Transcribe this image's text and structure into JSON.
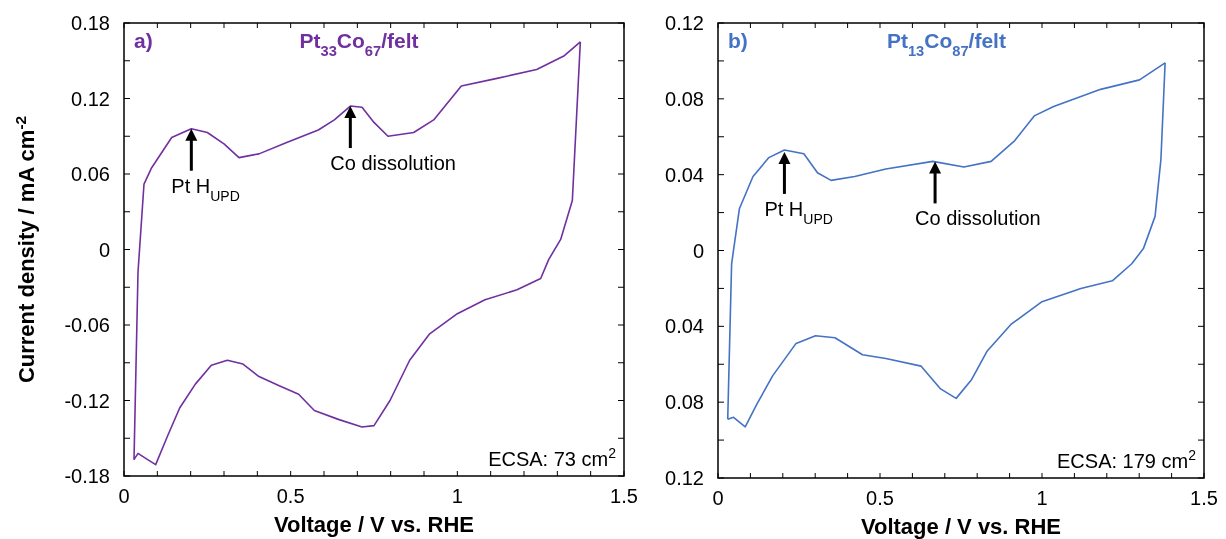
{
  "chart_data": [
    {
      "type": "line",
      "title": "Pt$_{33}$Co$_{67}$/felt",
      "xlabel": "Voltage / V vs. RHE",
      "ylabel": "Current density / mA cm$^{-2}$",
      "xlim": [
        0,
        1.5
      ],
      "xticks": [
        0,
        {
          "value": 0.1,
          "label": null
        },
        {
          "value": 0.2,
          "label": null
        },
        {
          "value": 0.3,
          "label": null
        },
        {
          "value": 0.4,
          "label": null
        },
        0.5,
        {
          "value": 0.6,
          "label": null
        },
        {
          "value": 0.7,
          "label": null
        },
        {
          "value": 0.8,
          "label": null
        },
        {
          "value": 0.9,
          "label": null
        },
        1,
        {
          "value": 1.1,
          "label": null
        },
        {
          "value": 1.2,
          "label": null
        },
        {
          "value": 1.3,
          "label": null
        },
        {
          "value": 1.4,
          "label": null
        },
        1.5
      ],
      "ylim": [
        -0.18,
        0.18
      ],
      "yticks": [
        -0.18,
        {
          "value": -0.15,
          "label": null
        },
        -0.12,
        {
          "value": -0.09,
          "label": null
        },
        -0.06,
        {
          "value": -0.03,
          "label": null
        },
        0,
        {
          "value": 0.03,
          "label": null
        },
        0.06,
        {
          "value": 0.09,
          "label": null
        },
        0.12,
        {
          "value": 0.15,
          "label": null
        },
        0.18
      ],
      "grid": false,
      "marker": "none",
      "line_style": "solid",
      "annotations": [
        "a)",
        {
          "text": "Pt H$_{UPD}$",
          "x": 0.202,
          "y": 0.096
        },
        {
          "text": "Co dissolution",
          "x": 0.679,
          "y": 0.114
        },
        "ECSA: 73 cm$^{2}$"
      ],
      "series": [
        {
          "color": "#7030a0",
          "x": [
            0.03,
            0.042,
            0.06,
            0.083,
            0.143,
            0.202,
            0.25,
            0.3,
            0.345,
            0.405,
            0.488,
            0.583,
            0.631,
            0.679,
            0.714,
            0.75,
            0.792,
            0.869,
            0.929,
            1.012,
            1.119,
            1.238,
            1.321,
            1.369
          ],
          "values": [
            -0.167,
            -0.018,
            0.052,
            0.065,
            0.089,
            0.096,
            0.093,
            0.084,
            0.073,
            0.076,
            0.085,
            0.095,
            0.103,
            0.114,
            0.113,
            0.101,
            0.09,
            0.093,
            0.103,
            0.13,
            0.136,
            0.143,
            0.154,
            0.165
          ]
        },
        {
          "color": "#7030a0",
          "x": [
            1.369,
            1.345,
            1.31,
            1.274,
            1.25,
            1.179,
            1.083,
            1.0,
            0.917,
            0.857,
            0.798,
            0.75,
            0.714,
            0.643,
            0.571,
            0.524,
            0.464,
            0.405,
            0.357,
            0.31,
            0.262,
            0.214,
            0.167,
            0.131,
            0.095,
            0.071,
            0.042,
            0.03
          ],
          "values": [
            0.165,
            0.039,
            0.008,
            -0.008,
            -0.023,
            -0.032,
            -0.04,
            -0.051,
            -0.067,
            -0.088,
            -0.12,
            -0.14,
            -0.141,
            -0.135,
            -0.128,
            -0.115,
            -0.108,
            -0.101,
            -0.091,
            -0.088,
            -0.092,
            -0.107,
            -0.126,
            -0.148,
            -0.171,
            -0.167,
            -0.162,
            -0.167
          ]
        }
      ]
    },
    {
      "type": "line",
      "title": "Pt$_{13}$Co$_{87}$/felt",
      "xlabel": "Voltage / V vs. RHE",
      "xlim": [
        0,
        1.5
      ],
      "xticks": [
        0,
        {
          "value": 0.1,
          "label": null
        },
        {
          "value": 0.2,
          "label": null
        },
        {
          "value": 0.3,
          "label": null
        },
        {
          "value": 0.4,
          "label": null
        },
        0.5,
        {
          "value": 0.6,
          "label": null
        },
        {
          "value": 0.7,
          "label": null
        },
        {
          "value": 0.8,
          "label": null
        },
        {
          "value": 0.9,
          "label": null
        },
        1,
        {
          "value": 1.1,
          "label": null
        },
        {
          "value": 1.2,
          "label": null
        },
        {
          "value": 1.3,
          "label": null
        },
        {
          "value": 1.4,
          "label": null
        },
        1.5
      ],
      "ylim": [
        -0.12,
        0.12
      ],
      "yticks": [
        {
          "value": -0.12,
          "label": "0.12"
        },
        {
          "value": -0.1,
          "label": null
        },
        {
          "value": -0.08,
          "label": "0.08"
        },
        {
          "value": -0.06,
          "label": null
        },
        {
          "value": -0.04,
          "label": "0.04"
        },
        {
          "value": -0.02,
          "label": null
        },
        0,
        {
          "value": 0.02,
          "label": null
        },
        0.04,
        {
          "value": 0.06,
          "label": null
        },
        0.08,
        {
          "value": 0.1,
          "label": null
        },
        0.12
      ],
      "grid": false,
      "marker": "none",
      "line_style": "solid",
      "annotations": [
        "b)",
        {
          "text": "Pt H$_{UPD}$",
          "x": 0.205,
          "y": 0.052
        },
        {
          "text": "Co dissolution",
          "x": 0.67,
          "y": 0.047
        },
        "ECSA: 179 cm$^{2}$"
      ],
      "series": [
        {
          "color": "#4472c4",
          "x": [
            0.03,
            0.042,
            0.066,
            0.108,
            0.157,
            0.205,
            0.265,
            0.307,
            0.349,
            0.422,
            0.518,
            0.663,
            0.759,
            0.843,
            0.916,
            0.976,
            1.036,
            1.181,
            1.301,
            1.38
          ],
          "values": [
            -0.089,
            -0.007,
            0.022,
            0.039,
            0.049,
            0.053,
            0.051,
            0.041,
            0.037,
            0.039,
            0.043,
            0.047,
            0.044,
            0.047,
            0.058,
            0.071,
            0.076,
            0.085,
            0.09,
            0.099
          ]
        },
        {
          "color": "#4472c4",
          "x": [
            1.38,
            1.367,
            1.349,
            1.313,
            1.277,
            1.217,
            1.12,
            1.0,
            0.904,
            0.831,
            0.783,
            0.735,
            0.687,
            0.627,
            0.518,
            0.446,
            0.361,
            0.301,
            0.241,
            0.169,
            0.12,
            0.084,
            0.048,
            0.03
          ],
          "values": [
            0.099,
            0.048,
            0.018,
            0.001,
            -0.007,
            -0.016,
            -0.02,
            -0.027,
            -0.039,
            -0.053,
            -0.068,
            -0.078,
            -0.073,
            -0.061,
            -0.057,
            -0.055,
            -0.046,
            -0.045,
            -0.049,
            -0.066,
            -0.081,
            -0.093,
            -0.088,
            -0.089
          ]
        }
      ]
    }
  ]
}
